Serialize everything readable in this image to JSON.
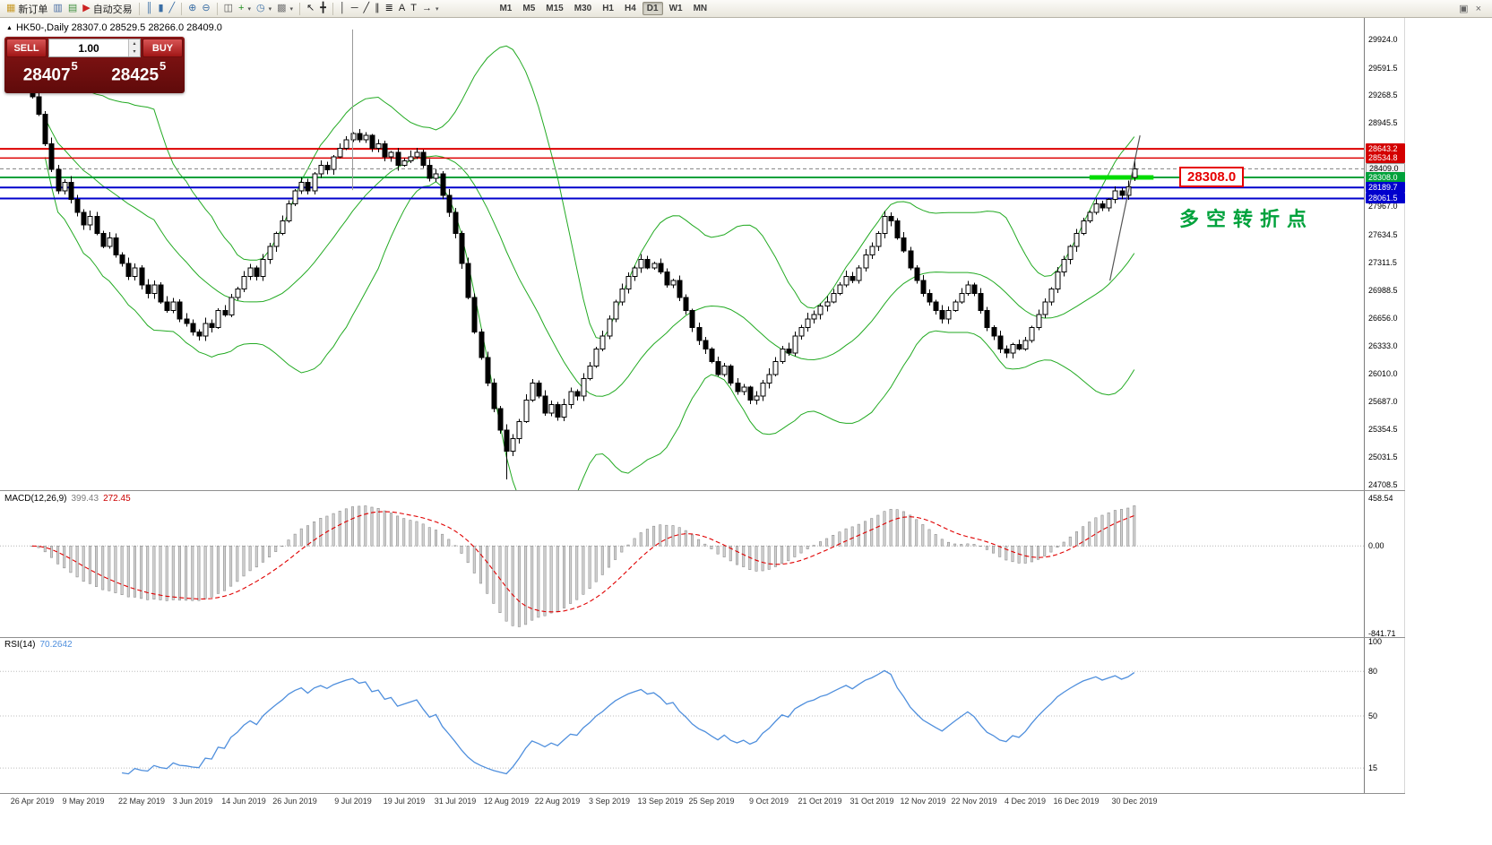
{
  "toolbar": {
    "groups": [
      {
        "items": [
          {
            "button": "new-order-button",
            "icon": "new-order-icon",
            "glyph": "▦",
            "color": "#c89b2a",
            "label": "新订单"
          },
          {
            "button": "chart-window-button",
            "icon": "chart-window-icon",
            "glyph": "▥",
            "color": "#4a6fa5"
          },
          {
            "button": "profiles-button",
            "icon": "profiles-icon",
            "glyph": "▤",
            "color": "#3f8f3f"
          },
          {
            "button": "auto-trading-button",
            "icon": "auto-trading-icon",
            "glyph": "▶",
            "color": "#cc2222",
            "label": "自动交易"
          }
        ]
      },
      {
        "items": [
          {
            "button": "bar-chart-button",
            "icon": "bar-chart-icon",
            "glyph": "║",
            "color": "#3a6ea5"
          },
          {
            "button": "candlestick-chart-button",
            "icon": "candlestick-chart-icon",
            "glyph": "▮",
            "color": "#3a6ea5"
          },
          {
            "button": "line-chart-button",
            "icon": "line-chart-icon",
            "glyph": "╱",
            "color": "#3a6ea5"
          }
        ]
      },
      {
        "items": [
          {
            "button": "zoom-in-button",
            "icon": "zoom-in-icon",
            "glyph": "⊕",
            "color": "#3a6ea5"
          },
          {
            "button": "zoom-out-button",
            "icon": "zoom-out-icon",
            "glyph": "⊖",
            "color": "#3a6ea5"
          }
        ]
      },
      {
        "items": [
          {
            "button": "tile-windows-button",
            "icon": "tile-windows-icon",
            "glyph": "◫",
            "color": "#555555"
          },
          {
            "button": "indicators-button",
            "icon": "indicators-icon",
            "glyph": "+",
            "color": "#1f8f1f",
            "caret": true
          },
          {
            "button": "periods-button",
            "icon": "periods-icon",
            "glyph": "◷",
            "color": "#3a6ea5",
            "caret": true
          },
          {
            "button": "templates-button",
            "icon": "templates-icon",
            "glyph": "▩",
            "color": "#777777",
            "caret": true
          }
        ]
      },
      {
        "items": [
          {
            "button": "cursor-button",
            "icon": "cursor-icon",
            "glyph": "↖",
            "color": "#222222"
          },
          {
            "button": "crosshair-button",
            "icon": "crosshair-icon",
            "glyph": "╋",
            "color": "#222222"
          }
        ]
      },
      {
        "items": [
          {
            "button": "vertical-line-button",
            "icon": "vertical-line-icon",
            "glyph": "│",
            "color": "#222222"
          },
          {
            "button": "horizontal-line-button",
            "icon": "horizontal-line-icon",
            "glyph": "─",
            "color": "#222222"
          },
          {
            "button": "trendline-button",
            "icon": "trendline-icon",
            "glyph": "╱",
            "color": "#222222"
          },
          {
            "button": "channel-button",
            "icon": "channel-icon",
            "glyph": "∥",
            "color": "#222222"
          },
          {
            "button": "fibonacci-button",
            "icon": "fibonacci-icon",
            "glyph": "≣",
            "color": "#222222"
          },
          {
            "button": "text-button",
            "icon": "text-icon",
            "glyph": "A",
            "color": "#222222"
          },
          {
            "button": "label-button",
            "icon": "label-icon",
            "glyph": "T",
            "color": "#222222"
          },
          {
            "button": "arrows-button",
            "icon": "arrows-icon",
            "glyph": "→",
            "color": "#222222",
            "caret": true
          }
        ]
      }
    ],
    "timeframes": [
      "M1",
      "M5",
      "M15",
      "M30",
      "H1",
      "H4",
      "D1",
      "W1",
      "MN"
    ],
    "active_timeframe": "D1",
    "right_icons": [
      {
        "name": "restore-chart-button",
        "glyph": "▣"
      },
      {
        "name": "close-chart-button",
        "glyph": "×"
      }
    ]
  },
  "chart": {
    "title_marker": "▲",
    "title": "HK50-,Daily 28307.0 28529.5 28266.0 28409.0"
  },
  "order_panel": {
    "sell_label": "SELL",
    "buy_label": "BUY",
    "volume": "1.00",
    "spinner_up": "▴",
    "spinner_down": "▾",
    "sell_price": {
      "big": "28407",
      "sup": "5"
    },
    "buy_price": {
      "big": "28425",
      "sup": "5"
    }
  },
  "annotations": {
    "price_label": "28308.0",
    "note_text": "多空转折点"
  },
  "indicators": {
    "macd": {
      "label": "MACD(12,26,9)",
      "value": "399.43",
      "signal": "272.45",
      "axis_labels": [
        "458.54",
        "0.00",
        "-841.71"
      ],
      "axis_values": [
        458.54,
        0,
        -841.71
      ]
    },
    "rsi": {
      "label": "RSI(14)",
      "value": "70.2642",
      "axis_values": [
        100,
        80,
        50,
        15
      ],
      "levels": [
        80,
        50,
        15
      ]
    }
  },
  "price_axis": {
    "ticks": [
      29924.0,
      29591.5,
      29268.5,
      28945.5,
      27967.0,
      27634.5,
      27311.5,
      26988.5,
      26656.0,
      26333.0,
      26010.0,
      25687.0,
      25354.5,
      25031.5,
      24708.5
    ],
    "tags": [
      {
        "text": "28643.2",
        "value": 28643.2,
        "type": "red"
      },
      {
        "text": "28534.8",
        "value": 28534.8,
        "type": "red"
      },
      {
        "text": "28409.0",
        "value": 28409.0,
        "type": "price"
      },
      {
        "text": "28308.0",
        "value": 28308.0,
        "type": "green"
      },
      {
        "text": "28189.7",
        "value": 28189.7,
        "type": "blue"
      },
      {
        "text": "28061.5",
        "value": 28061.5,
        "type": "blue"
      }
    ]
  },
  "chart_data": {
    "type": "candlestick",
    "symbol": "HK50-",
    "timeframe": "Daily",
    "y_axis": {
      "min": 24708.5,
      "max": 29924.0
    },
    "first_open": 29650,
    "closes": [
      29250,
      29050,
      28700,
      28400,
      28150,
      28250,
      28050,
      27900,
      27750,
      27850,
      27650,
      27500,
      27600,
      27400,
      27300,
      27150,
      27250,
      27050,
      26950,
      27050,
      26850,
      26750,
      26850,
      26650,
      26600,
      26500,
      26450,
      26600,
      26550,
      26750,
      26700,
      26900,
      27000,
      27150,
      27250,
      27150,
      27350,
      27500,
      27650,
      27800,
      28000,
      28150,
      28250,
      28150,
      28350,
      28450,
      28400,
      28550,
      28650,
      28750,
      28820,
      28750,
      28800,
      28650,
      28700,
      28550,
      28600,
      28450,
      28500,
      28550,
      28600,
      28450,
      28300,
      28350,
      28100,
      27900,
      27650,
      27300,
      26900,
      26500,
      26200,
      25900,
      25600,
      25350,
      25100,
      25250,
      25450,
      25700,
      25900,
      25750,
      25550,
      25650,
      25500,
      25650,
      25800,
      25750,
      25950,
      26100,
      26300,
      26450,
      26650,
      26850,
      27000,
      27150,
      27250,
      27350,
      27250,
      27300,
      27200,
      27050,
      27100,
      26900,
      26750,
      26550,
      26400,
      26300,
      26150,
      26000,
      26100,
      25900,
      25800,
      25850,
      25700,
      25750,
      25900,
      26000,
      26150,
      26300,
      26250,
      26450,
      26550,
      26650,
      26700,
      26800,
      26850,
      26950,
      27050,
      27150,
      27100,
      27250,
      27400,
      27500,
      27650,
      27850,
      27800,
      27600,
      27450,
      27250,
      27100,
      26950,
      26850,
      26750,
      26650,
      26750,
      26850,
      26950,
      27050,
      26950,
      26750,
      26550,
      26450,
      26300,
      26250,
      26350,
      26300,
      26400,
      26550,
      26700,
      26850,
      27000,
      27200,
      27350,
      27500,
      27650,
      27800,
      27900,
      28000,
      27950,
      28050,
      28150,
      28100,
      28200,
      28409
    ],
    "overrides": {
      "74": {
        "low": 24770
      },
      "172": {
        "open": 28307.0,
        "high": 28529.5,
        "low": 28266.0,
        "close": 28409.0
      }
    },
    "last_candle": {
      "open": 28307.0,
      "high": 28529.5,
      "low": 28266.0,
      "close": 28409.0
    },
    "x_labels": [
      {
        "text": "26 Apr 2019",
        "index": 0
      },
      {
        "text": "9 May 2019",
        "index": 8
      },
      {
        "text": "22 May 2019",
        "index": 17
      },
      {
        "text": "3 Jun 2019",
        "index": 25
      },
      {
        "text": "14 Jun 2019",
        "index": 33
      },
      {
        "text": "26 Jun 2019",
        "index": 41
      },
      {
        "text": "9 Jul 2019",
        "index": 50
      },
      {
        "text": "19 Jul 2019",
        "index": 58
      },
      {
        "text": "31 Jul 2019",
        "index": 66
      },
      {
        "text": "12 Aug 2019",
        "index": 74
      },
      {
        "text": "22 Aug 2019",
        "index": 82
      },
      {
        "text": "3 Sep 2019",
        "index": 90
      },
      {
        "text": "13 Sep 2019",
        "index": 98
      },
      {
        "text": "25 Sep 2019",
        "index": 106
      },
      {
        "text": "9 Oct 2019",
        "index": 115
      },
      {
        "text": "21 Oct 2019",
        "index": 123
      },
      {
        "text": "31 Oct 2019",
        "index": 131
      },
      {
        "text": "12 Nov 2019",
        "index": 139
      },
      {
        "text": "22 Nov 2019",
        "index": 147
      },
      {
        "text": "4 Dec 2019",
        "index": 155
      },
      {
        "text": "16 Dec 2019",
        "index": 163
      },
      {
        "text": "30 Dec 2019",
        "index": 172
      }
    ],
    "horizontal_lines": [
      {
        "value": 28643.2,
        "color": "#dd0000",
        "width": 2
      },
      {
        "value": 28534.8,
        "color": "#dd0000",
        "width": 1.5
      },
      {
        "value": 28409.0,
        "color": "#808080",
        "width": 1,
        "dash": "4,3"
      },
      {
        "value": 28308.0,
        "color": "#00a13a",
        "width": 2
      },
      {
        "value": 28189.7,
        "color": "#0000cc",
        "width": 2
      },
      {
        "value": 28061.5,
        "color": "#0000cc",
        "width": 2
      }
    ],
    "highlight_segment": {
      "value": 28308.0,
      "x1_index": 165,
      "x2_index": 175,
      "color": "#00dc00",
      "thickness": 5
    },
    "objects": [
      {
        "type": "vline",
        "index": 50,
        "price_top": 30040,
        "price_bottom": 28160,
        "color": "#999999"
      },
      {
        "type": "trendline",
        "x1_index": 168.2,
        "price1": 27100,
        "x2_index": 172.9,
        "price2": 28800,
        "color": "#555555"
      }
    ],
    "bollinger": {
      "period": 20,
      "deviation": 2,
      "color": "#22aa22"
    },
    "macd_params": {
      "fast": 12,
      "slow": 26,
      "signal": 9
    },
    "rsi_params": {
      "period": 14
    }
  }
}
